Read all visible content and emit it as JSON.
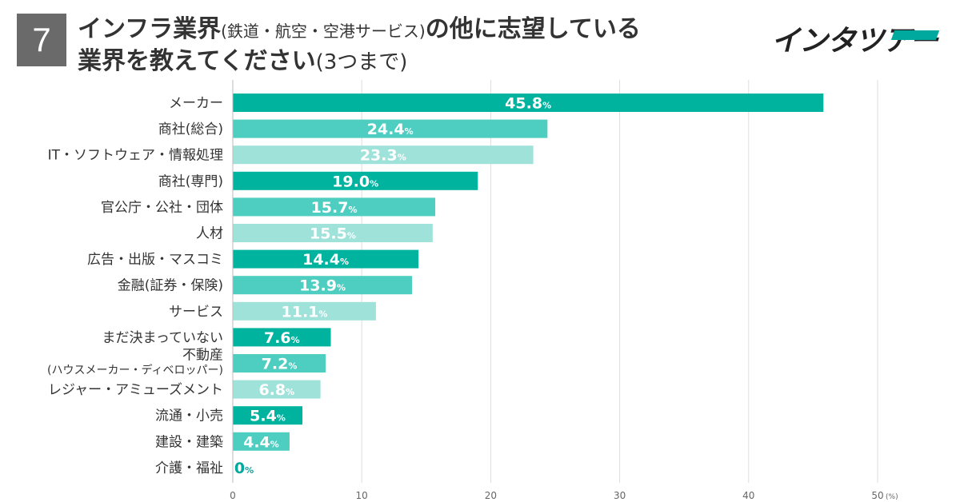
{
  "badge": "7",
  "title": {
    "line1_part1": "インフラ業界",
    "line1_part2": "(鉄道・航空・空港サービス)",
    "line1_part3": "の他に志望している",
    "line2_part1": "業界を教えてください",
    "line2_part2": "(3つまで)"
  },
  "logo": {
    "text": "インタツアー",
    "accent_color": "#00a99d"
  },
  "colors": {
    "dark": "#00b39f",
    "mid": "#4ecdc1",
    "light": "#9fe2da",
    "grid": "#dddddd"
  },
  "chart_data": {
    "type": "bar",
    "orientation": "horizontal",
    "title": "インフラ業界(鉄道・航空・空港サービス)の他に志望している業界を教えてください(3つまで)",
    "xlabel": "",
    "unit_label": "(%)",
    "value_suffix": "%",
    "xlim": [
      0,
      50
    ],
    "xticks": [
      0,
      10,
      20,
      30,
      40,
      50
    ],
    "grid": true,
    "categories": [
      [
        "メーカー"
      ],
      [
        "商社(総合)"
      ],
      [
        "IT・ソフトウェア・情報処理"
      ],
      [
        "商社(専門)"
      ],
      [
        "官公庁・公社・団体"
      ],
      [
        "人材"
      ],
      [
        "広告・出版・マスコミ"
      ],
      [
        "金融(証券・保険)"
      ],
      [
        "サービス"
      ],
      [
        "まだ決まっていない"
      ],
      [
        "不動産",
        "(ハウスメーカー・ディベロッパー)"
      ],
      [
        "レジャー・アミューズメント"
      ],
      [
        "流通・小売"
      ],
      [
        "建設・建築"
      ],
      [
        "介護・福祉"
      ]
    ],
    "values": [
      45.8,
      24.4,
      23.3,
      19.0,
      15.7,
      15.5,
      14.4,
      13.9,
      11.1,
      7.6,
      7.2,
      6.8,
      5.4,
      4.4,
      0
    ],
    "value_labels": [
      "45.8",
      "24.4",
      "23.3",
      "19.0",
      "15.7",
      "15.5",
      "14.4",
      "13.9",
      "11.1",
      "7.6",
      "7.2",
      "6.8",
      "5.4",
      "4.4",
      "0"
    ],
    "bar_shades": [
      "dark",
      "mid",
      "light",
      "dark",
      "mid",
      "light",
      "dark",
      "mid",
      "light",
      "dark",
      "mid",
      "light",
      "dark",
      "mid",
      "light"
    ]
  }
}
